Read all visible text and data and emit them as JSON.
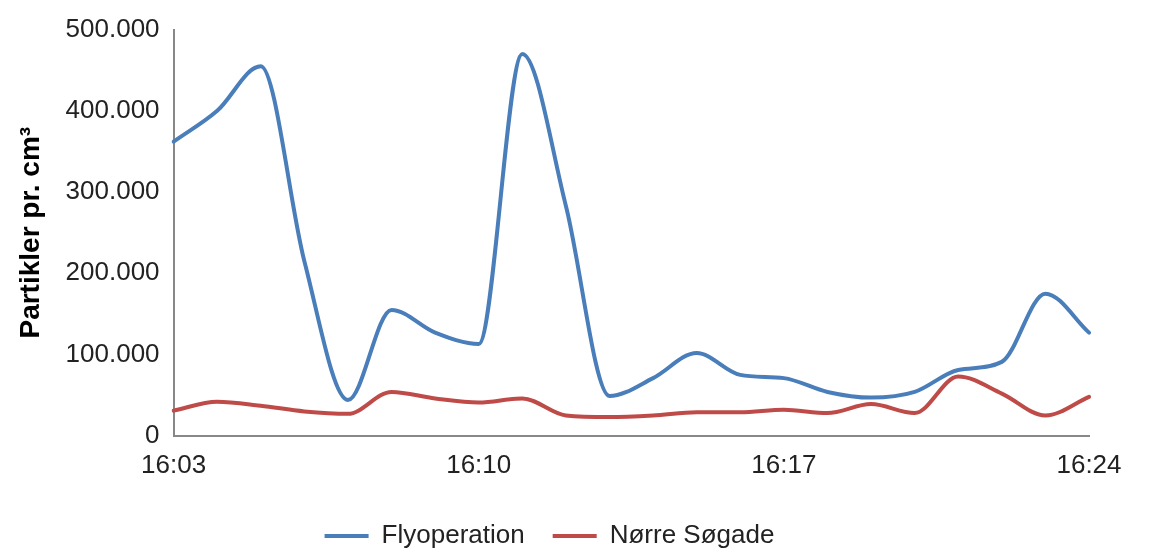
{
  "chart_data": {
    "type": "line",
    "ylabel": "Partikler pr. cm³",
    "categories": [
      "16:03",
      null,
      null,
      null,
      null,
      null,
      null,
      "16:10",
      null,
      null,
      null,
      null,
      null,
      null,
      "16:17",
      null,
      null,
      null,
      null,
      null,
      null,
      "16:24"
    ],
    "series": [
      {
        "name": "Flyoperation",
        "color": "#4a7ebb",
        "values": [
          362000,
          400000,
          455000,
          215000,
          44000,
          155000,
          127000,
          113000,
          470000,
          283000,
          49000,
          71000,
          102000,
          75000,
          71000,
          54000,
          47000,
          54000,
          81000,
          91000,
          175000,
          127000
        ]
      },
      {
        "name": "Nørre Søgade",
        "color": "#be4b48",
        "values": [
          31000,
          42000,
          37000,
          30000,
          27000,
          54000,
          46000,
          41000,
          46000,
          25000,
          23000,
          25000,
          29000,
          29000,
          32000,
          28000,
          39000,
          28000,
          73000,
          52000,
          25000,
          48000
        ]
      }
    ],
    "ylim": [
      0,
      500000
    ],
    "yticks": [
      0,
      {
        "value": 100000,
        "label": "100.000"
      },
      {
        "value": 200000,
        "label": "200.000"
      },
      {
        "value": 300000,
        "label": "300.000"
      },
      {
        "value": 400000,
        "label": "400.000"
      },
      {
        "value": 500000,
        "label": "500.000"
      }
    ],
    "grid": false,
    "legend": "bottom",
    "marker": "none",
    "line_style": "solid"
  }
}
